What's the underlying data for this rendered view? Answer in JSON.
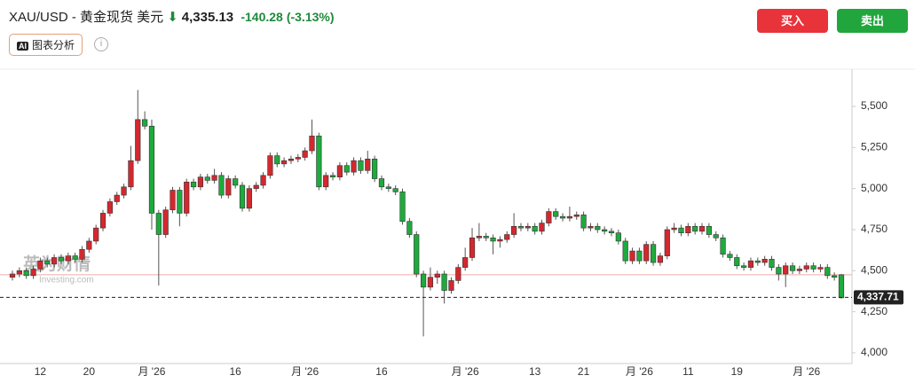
{
  "header": {
    "title": "XAU/USD - 黄金现货 美元",
    "price": "4,335.13",
    "change": "-140.28",
    "change_percent": "(-3.13%)",
    "buy": "买入",
    "sell": "卖出",
    "ai_button": "图表分析"
  },
  "watermark": {
    "brand": "英为财情",
    "site": "Investing.com"
  },
  "chart_data": {
    "type": "candlestick",
    "up_color": "#d3282f",
    "down_color": "#1faa3d",
    "ylim": [
      3935,
      5716
    ],
    "yticks": [
      {
        "value": 4000,
        "label": "4,000"
      },
      {
        "value": 4250,
        "label": "4,250"
      },
      {
        "value": 4500,
        "label": "4,500"
      },
      {
        "value": 4750,
        "label": "4,750"
      },
      {
        "value": 5000,
        "label": "5,000"
      },
      {
        "value": 5250,
        "label": "5,250"
      },
      {
        "value": 5500,
        "label": "5,500"
      }
    ],
    "categories": [
      null,
      null,
      null,
      null,
      "12",
      null,
      null,
      null,
      null,
      null,
      null,
      "20",
      null,
      null,
      null,
      null,
      null,
      null,
      null,
      null,
      "月 '26",
      null,
      null,
      null,
      null,
      null,
      null,
      null,
      null,
      null,
      null,
      null,
      "16",
      null,
      null,
      null,
      null,
      null,
      null,
      null,
      null,
      null,
      "月 '26",
      null,
      null,
      null,
      null,
      null,
      null,
      null,
      null,
      null,
      null,
      "16",
      null,
      null,
      null,
      null,
      null,
      null,
      null,
      null,
      null,
      null,
      null,
      "月 '26",
      null,
      null,
      null,
      null,
      null,
      null,
      null,
      null,
      null,
      "13",
      null,
      null,
      null,
      null,
      null,
      null,
      "21",
      null,
      null,
      null,
      null,
      null,
      null,
      null,
      "月 '26",
      null,
      null,
      null,
      null,
      null,
      null,
      "11",
      null,
      null,
      null,
      null,
      null,
      null,
      "19",
      null,
      null,
      null,
      null,
      null,
      null,
      null,
      null,
      null,
      "月 '26",
      null,
      null,
      null,
      null,
      null
    ],
    "open": [
      4460,
      4480,
      4500,
      4470,
      4510,
      4560,
      4540,
      4580,
      4560,
      4590,
      4570,
      4630,
      4680,
      4760,
      4850,
      4920,
      4960,
      5010,
      5170,
      5420,
      5380,
      4850,
      4720,
      4870,
      4990,
      4850,
      5040,
      5010,
      5070,
      5050,
      5080,
      4960,
      5060,
      5020,
      4880,
      5000,
      5020,
      5080,
      5200,
      5150,
      5170,
      5180,
      5190,
      5230,
      5320,
      5010,
      5080,
      5070,
      5140,
      5100,
      5170,
      5110,
      5180,
      5060,
      5010,
      5000,
      4980,
      4800,
      4720,
      4480,
      4400,
      4460,
      4480,
      4380,
      4440,
      4520,
      4580,
      4700,
      4710,
      4700,
      4680,
      4690,
      4720,
      4770,
      4760,
      4770,
      4740,
      4790,
      4860,
      4830,
      4820,
      4830,
      4840,
      4760,
      4770,
      4750,
      4740,
      4730,
      4680,
      4560,
      4620,
      4560,
      4660,
      4550,
      4590,
      4750,
      4760,
      4730,
      4770,
      4740,
      4770,
      4720,
      4700,
      4600,
      4580,
      4530,
      4520,
      4560,
      4550,
      4570,
      4520,
      4480,
      4530,
      4500,
      4510,
      4530,
      4510,
      4520,
      4470,
      4475.41
    ],
    "high": [
      4500,
      4520,
      4520,
      4530,
      4580,
      4580,
      4600,
      4600,
      4610,
      4610,
      4650,
      4700,
      4780,
      4870,
      4940,
      4980,
      5030,
      5260,
      5600,
      5470,
      5420,
      4870,
      4890,
      5010,
      5010,
      5060,
      5060,
      5090,
      5090,
      5120,
      5100,
      5080,
      5080,
      5040,
      5020,
      5040,
      5100,
      5220,
      5220,
      5190,
      5200,
      5210,
      5250,
      5420,
      5340,
      5100,
      5100,
      5160,
      5160,
      5190,
      5190,
      5230,
      5200,
      5080,
      5030,
      5020,
      5000,
      4820,
      4740,
      4500,
      4520,
      4500,
      4500,
      4460,
      4540,
      4640,
      4760,
      4790,
      4730,
      4720,
      4710,
      4740,
      4850,
      4790,
      4790,
      4790,
      4810,
      4880,
      4880,
      4850,
      4890,
      4860,
      4860,
      4790,
      4790,
      4770,
      4760,
      4750,
      4700,
      4640,
      4640,
      4680,
      4680,
      4610,
      4770,
      4790,
      4780,
      4790,
      4790,
      4790,
      4790,
      4740,
      4720,
      4620,
      4600,
      4550,
      4580,
      4580,
      4590,
      4590,
      4540,
      4550,
      4550,
      4530,
      4550,
      4550,
      4540,
      4540,
      4490,
      4480
    ],
    "low": [
      4440,
      4460,
      4450,
      4450,
      4490,
      4520,
      4520,
      4540,
      4540,
      4550,
      4550,
      4610,
      4660,
      4740,
      4830,
      4900,
      4940,
      4990,
      5150,
      5360,
      4750,
      4410,
      4700,
      4850,
      4770,
      4830,
      4990,
      4990,
      5030,
      5030,
      4940,
      4940,
      5000,
      4860,
      4860,
      4980,
      5000,
      5060,
      5130,
      5130,
      5150,
      5160,
      5170,
      5210,
      4990,
      4990,
      5050,
      5050,
      5080,
      5080,
      5090,
      5090,
      5040,
      4990,
      4980,
      4960,
      4780,
      4700,
      4460,
      4100,
      4380,
      4420,
      4300,
      4360,
      4420,
      4500,
      4560,
      4680,
      4680,
      4600,
      4640,
      4670,
      4700,
      4740,
      4740,
      4720,
      4720,
      4770,
      4810,
      4800,
      4800,
      4810,
      4740,
      4740,
      4730,
      4720,
      4710,
      4660,
      4540,
      4540,
      4540,
      4540,
      4530,
      4530,
      4570,
      4730,
      4710,
      4710,
      4720,
      4720,
      4700,
      4680,
      4580,
      4560,
      4510,
      4500,
      4500,
      4530,
      4530,
      4500,
      4440,
      4400,
      4480,
      4480,
      4490,
      4490,
      4490,
      4450,
      4440,
      4330
    ],
    "close": [
      4480,
      4500,
      4470,
      4510,
      4560,
      4540,
      4580,
      4560,
      4590,
      4570,
      4630,
      4680,
      4760,
      4850,
      4920,
      4960,
      5010,
      5170,
      5420,
      5380,
      4850,
      4720,
      4870,
      4990,
      4850,
      5040,
      5010,
      5070,
      5050,
      5080,
      4960,
      5060,
      5020,
      4880,
      5000,
      5020,
      5080,
      5200,
      5150,
      5170,
      5180,
      5190,
      5230,
      5320,
      5010,
      5080,
      5070,
      5140,
      5100,
      5170,
      5110,
      5180,
      5060,
      5010,
      5000,
      4980,
      4800,
      4720,
      4480,
      4400,
      4460,
      4480,
      4380,
      4440,
      4520,
      4580,
      4700,
      4710,
      4700,
      4680,
      4690,
      4720,
      4770,
      4760,
      4770,
      4740,
      4790,
      4860,
      4830,
      4820,
      4830,
      4840,
      4760,
      4770,
      4750,
      4740,
      4730,
      4680,
      4560,
      4620,
      4560,
      4660,
      4550,
      4590,
      4750,
      4760,
      4730,
      4770,
      4740,
      4770,
      4720,
      4700,
      4600,
      4580,
      4530,
      4520,
      4560,
      4550,
      4570,
      4520,
      4480,
      4530,
      4500,
      4510,
      4530,
      4510,
      4520,
      4470,
      4460,
      4335.13
    ],
    "reference_line": 4475.41,
    "last_price": {
      "value": 4337.71,
      "label": "4,337.71"
    }
  }
}
